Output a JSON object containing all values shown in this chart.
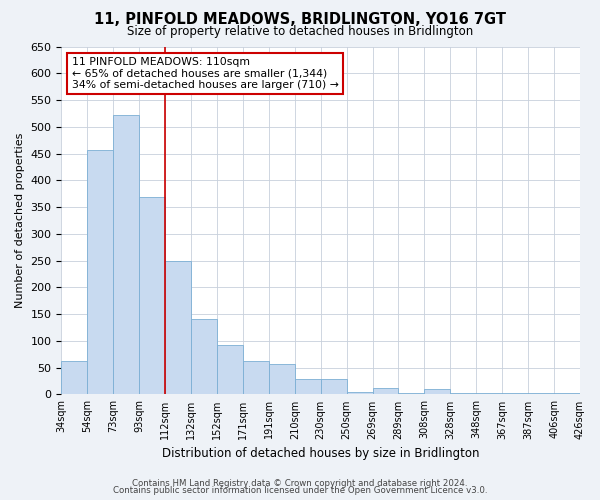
{
  "title": "11, PINFOLD MEADOWS, BRIDLINGTON, YO16 7GT",
  "subtitle": "Size of property relative to detached houses in Bridlington",
  "bar_values": [
    62,
    456,
    522,
    368,
    250,
    141,
    93,
    62,
    57,
    28,
    28,
    5,
    12,
    3,
    10,
    2,
    3,
    2,
    2,
    2
  ],
  "bin_labels": [
    "34sqm",
    "54sqm",
    "73sqm",
    "93sqm",
    "112sqm",
    "132sqm",
    "152sqm",
    "171sqm",
    "191sqm",
    "210sqm",
    "230sqm",
    "250sqm",
    "269sqm",
    "289sqm",
    "308sqm",
    "328sqm",
    "348sqm",
    "367sqm",
    "387sqm",
    "406sqm",
    "426sqm"
  ],
  "bar_color": "#c8daf0",
  "bar_edge_color": "#7bafd4",
  "vline_x": 4,
  "vline_color": "#cc0000",
  "annotation_title": "11 PINFOLD MEADOWS: 110sqm",
  "annotation_line1": "← 65% of detached houses are smaller (1,344)",
  "annotation_line2": "34% of semi-detached houses are larger (710) →",
  "annotation_box_color": "white",
  "annotation_box_edge": "#cc0000",
  "xlabel": "Distribution of detached houses by size in Bridlington",
  "ylabel": "Number of detached properties",
  "ylim": [
    0,
    650
  ],
  "yticks": [
    0,
    50,
    100,
    150,
    200,
    250,
    300,
    350,
    400,
    450,
    500,
    550,
    600,
    650
  ],
  "footer1": "Contains HM Land Registry data © Crown copyright and database right 2024.",
  "footer2": "Contains public sector information licensed under the Open Government Licence v3.0.",
  "bg_color": "#eef2f7",
  "plot_bg_color": "#ffffff",
  "grid_color": "#c8d0dc"
}
